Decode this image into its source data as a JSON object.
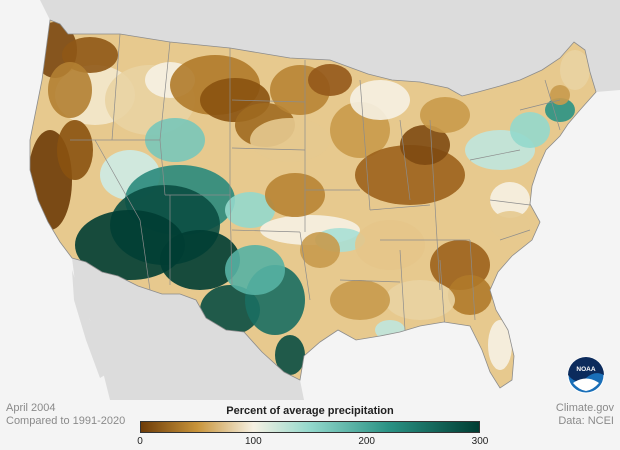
{
  "caption": {
    "month": "April 2004",
    "baseline": "Compared to 1991-2020",
    "source_site": "Climate.gov",
    "source_data": "Data: NCEI"
  },
  "legend": {
    "title": "Percent of average precipitation",
    "min": 0,
    "max": 300,
    "ticks": [
      "0",
      "100",
      "200",
      "300"
    ],
    "stops": [
      {
        "value": 0,
        "color": "#6e3c08"
      },
      {
        "value": 50,
        "color": "#c8943a"
      },
      {
        "value": 100,
        "color": "#f6f1e3"
      },
      {
        "value": 150,
        "color": "#93d8cc"
      },
      {
        "value": 220,
        "color": "#2a9284"
      },
      {
        "value": 300,
        "color": "#003d33"
      }
    ]
  },
  "logo": {
    "text": "NOAA",
    "icon": "noaa-logo-icon"
  },
  "colors": {
    "background": "#f4f4f4",
    "ocean": "#f4f4f4",
    "neighbor_land": "#dcdcdc",
    "state_lines": "#8c8c8c"
  }
}
